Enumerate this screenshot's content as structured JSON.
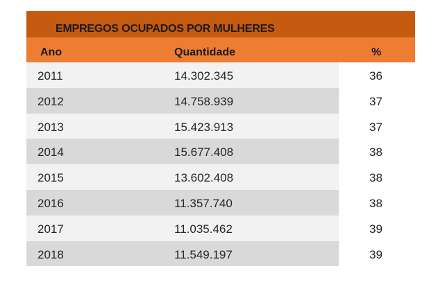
{
  "chart_data": {
    "type": "table",
    "title": "EMPREGOS OCUPADOS POR MULHERES",
    "columns": [
      "Ano",
      "Quantidade",
      "%"
    ],
    "rows": [
      {
        "year": "2011",
        "quantity": "14.302.345",
        "percent": "36"
      },
      {
        "year": "2012",
        "quantity": "14.758.939",
        "percent": "37"
      },
      {
        "year": "2013",
        "quantity": "15.423.913",
        "percent": "37"
      },
      {
        "year": "2014",
        "quantity": "15.677.408",
        "percent": "38"
      },
      {
        "year": "2015",
        "quantity": "13.602.408",
        "percent": "38"
      },
      {
        "year": "2016",
        "quantity": "11.357.740",
        "percent": "38"
      },
      {
        "year": "2017",
        "quantity": "11.035.462",
        "percent": "39"
      },
      {
        "year": "2018",
        "quantity": "11.549.197",
        "percent": "39"
      }
    ],
    "colors": {
      "title_bar": "#c55a11",
      "header_bar": "#ed7d31",
      "row_light": "#f2f2f2",
      "row_dark": "#d9d9d9"
    }
  }
}
